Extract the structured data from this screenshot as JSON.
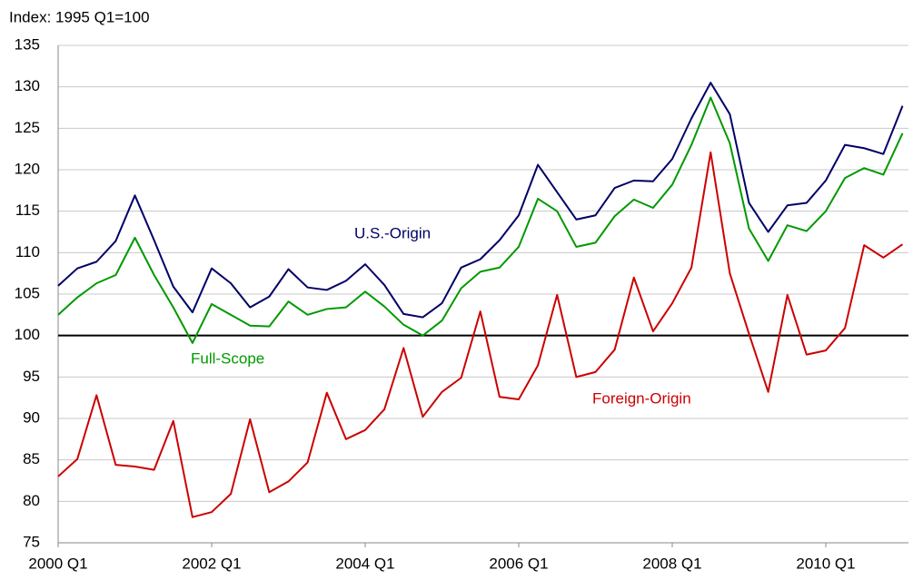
{
  "chart_data": {
    "type": "line",
    "y_label": "Index: 1995 Q1=100",
    "categories": [
      "2000 Q1",
      null,
      null,
      null,
      null,
      null,
      null,
      null,
      "2002 Q1",
      null,
      null,
      null,
      null,
      null,
      null,
      null,
      "2004 Q1",
      null,
      null,
      null,
      null,
      null,
      null,
      null,
      "2006 Q1",
      null,
      null,
      null,
      null,
      null,
      null,
      null,
      "2008 Q1",
      null,
      null,
      null,
      null,
      null,
      null,
      null,
      "2010 Q1",
      null,
      null,
      null,
      null
    ],
    "series": [
      {
        "name": "U.S.-Origin",
        "color": "#000066",
        "values": [
          106,
          108.1,
          108.9,
          111.4,
          116.9,
          111.5,
          105.9,
          102.8,
          108.1,
          106.3,
          103.4,
          104.7,
          108.0,
          105.8,
          105.5,
          106.6,
          108.6,
          106.1,
          102.6,
          102.2,
          103.9,
          108.2,
          109.2,
          111.5,
          114.5,
          120.6,
          117.3,
          114.0,
          114.5,
          117.8,
          118.7,
          118.6,
          121.3,
          126.2,
          130.5,
          126.7,
          116.0,
          112.5,
          115.7,
          116.0,
          118.7,
          123.0,
          122.6,
          121.9,
          127.7
        ]
      },
      {
        "name": "Full-Scope",
        "color": "#009900",
        "values": [
          102.5,
          104.6,
          106.3,
          107.3,
          111.8,
          107.3,
          103.4,
          99.1,
          103.8,
          102.5,
          101.2,
          101.1,
          104.1,
          102.5,
          103.2,
          103.4,
          105.3,
          103.5,
          101.3,
          100.0,
          101.8,
          105.7,
          107.7,
          108.2,
          110.7,
          116.5,
          115.0,
          110.7,
          111.2,
          114.4,
          116.4,
          115.4,
          118.2,
          123.0,
          128.7,
          123.2,
          112.9,
          109.0,
          113.3,
          112.6,
          115.0,
          119.0,
          120.2,
          119.4,
          124.4
        ]
      },
      {
        "name": "Foreign-Origin",
        "color": "#cc0000",
        "values": [
          83,
          85.1,
          92.8,
          84.4,
          84.2,
          83.8,
          89.7,
          78.1,
          78.7,
          80.9,
          89.9,
          81.1,
          82.4,
          84.7,
          93.1,
          87.5,
          88.6,
          91.1,
          98.5,
          90.2,
          93.2,
          94.9,
          102.9,
          92.6,
          92.3,
          96.4,
          104.9,
          95.0,
          95.6,
          98.3,
          107.0,
          100.5,
          103.9,
          108.2,
          122.1,
          107.5,
          100.2,
          93.2,
          104.9,
          97.7,
          98.2,
          100.9,
          110.9,
          109.4,
          111.0
        ]
      }
    ],
    "ylim": [
      75,
      135
    ],
    "yticks": [
      75,
      80,
      85,
      90,
      95,
      100,
      105,
      110,
      115,
      120,
      125,
      130,
      135
    ],
    "grid": true,
    "reference_line": 100,
    "reference_color": "#000000"
  }
}
